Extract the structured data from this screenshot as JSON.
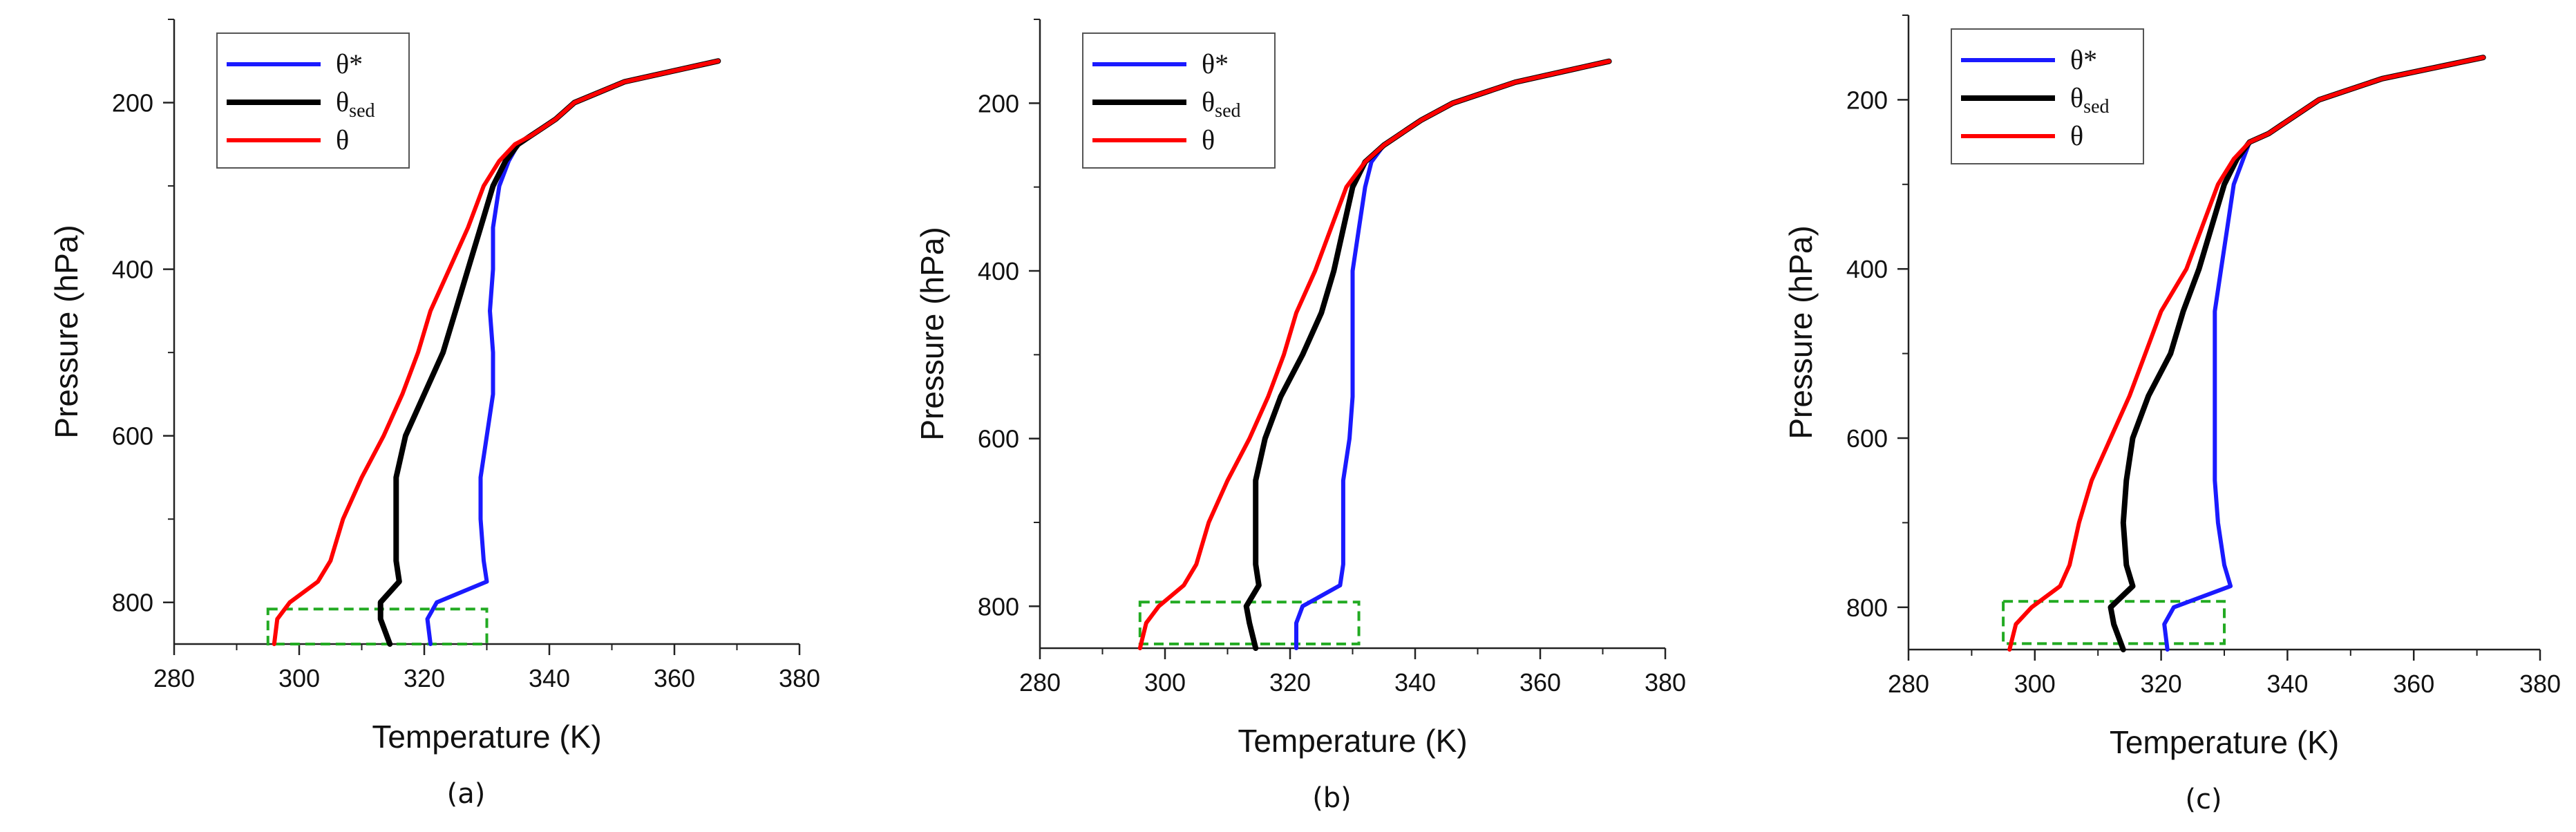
{
  "chart_data": [
    {
      "type": "line",
      "panel_label": "(a)",
      "xlabel": "Temperature (K)",
      "ylabel": "Pressure (hPa)",
      "xlim": [
        280,
        380
      ],
      "ylim": [
        850,
        100
      ],
      "y_inverted": true,
      "xticks": [
        280,
        300,
        320,
        340,
        360,
        380
      ],
      "xtick_labels": [
        "280",
        "300",
        "320",
        "340",
        "360",
        "380"
      ],
      "yticks": [
        200,
        400,
        600,
        800
      ],
      "ytick_labels": [
        "200",
        "400",
        "600",
        "800"
      ],
      "legend_position": "top-left",
      "series": [
        {
          "name": "θ*",
          "legend_main": "θ*",
          "legend_sub": "",
          "color": "#1a1aff",
          "points": [
            [
              321,
              850
            ],
            [
              320.5,
              820
            ],
            [
              322,
              800
            ],
            [
              330,
              775
            ],
            [
              329.5,
              750
            ],
            [
              329,
              700
            ],
            [
              329,
              650
            ],
            [
              330,
              600
            ],
            [
              331,
              550
            ],
            [
              331,
              500
            ],
            [
              330.5,
              450
            ],
            [
              331,
              400
            ],
            [
              331,
              350
            ],
            [
              332,
              300
            ],
            [
              333.5,
              270
            ],
            [
              335,
              250
            ],
            [
              337,
              240
            ],
            [
              339,
              230
            ],
            [
              341,
              220
            ],
            [
              344,
              200
            ],
            [
              352,
              175
            ],
            [
              367,
              150
            ]
          ]
        },
        {
          "name": "θsed",
          "legend_main": "θ",
          "legend_sub": "sed",
          "color": "#000000",
          "points": [
            [
              314.5,
              850
            ],
            [
              313,
              820
            ],
            [
              313,
              800
            ],
            [
              316,
              775
            ],
            [
              315.5,
              750
            ],
            [
              315.5,
              700
            ],
            [
              315.5,
              650
            ],
            [
              317,
              600
            ],
            [
              320,
              550
            ],
            [
              323,
              500
            ],
            [
              325,
              450
            ],
            [
              327,
              400
            ],
            [
              329,
              350
            ],
            [
              331,
              300
            ],
            [
              333,
              270
            ],
            [
              335,
              250
            ],
            [
              337,
              240
            ],
            [
              339,
              230
            ],
            [
              341,
              220
            ],
            [
              344,
              200
            ],
            [
              352,
              175
            ],
            [
              367,
              150
            ]
          ]
        },
        {
          "name": "θ",
          "legend_main": "θ",
          "legend_sub": "",
          "color": "#ff0000",
          "points": [
            [
              296,
              850
            ],
            [
              296.5,
              820
            ],
            [
              298.5,
              800
            ],
            [
              303,
              775
            ],
            [
              305,
              750
            ],
            [
              307,
              700
            ],
            [
              310,
              650
            ],
            [
              313.5,
              600
            ],
            [
              316.5,
              550
            ],
            [
              319,
              500
            ],
            [
              321,
              450
            ],
            [
              324,
              400
            ],
            [
              327,
              350
            ],
            [
              329.5,
              300
            ],
            [
              332,
              270
            ],
            [
              334.5,
              250
            ],
            [
              337,
              240
            ],
            [
              339,
              230
            ],
            [
              341,
              220
            ],
            [
              344,
              200
            ],
            [
              352,
              175
            ],
            [
              367,
              150
            ]
          ]
        }
      ],
      "highlight_box": {
        "x": [
          295,
          330
        ],
        "y": [
          808,
          850
        ],
        "color": "#22aa22"
      }
    },
    {
      "type": "line",
      "panel_label": "(b)",
      "xlabel": "Temperature (K)",
      "ylabel": "Pressure (hPa)",
      "xlim": [
        280,
        380
      ],
      "ylim": [
        850,
        100
      ],
      "y_inverted": true,
      "xticks": [
        280,
        300,
        320,
        340,
        360,
        380
      ],
      "xtick_labels": [
        "280",
        "300",
        "320",
        "340",
        "360",
        "380"
      ],
      "yticks": [
        200,
        400,
        600,
        800
      ],
      "ytick_labels": [
        "200",
        "400",
        "600",
        "800"
      ],
      "legend_position": "top-left",
      "series": [
        {
          "name": "θ*",
          "legend_main": "θ*",
          "legend_sub": "",
          "color": "#1a1aff",
          "points": [
            [
              321,
              850
            ],
            [
              321,
              820
            ],
            [
              322,
              800
            ],
            [
              328,
              775
            ],
            [
              328.5,
              750
            ],
            [
              328.5,
              700
            ],
            [
              328.5,
              650
            ],
            [
              329.5,
              600
            ],
            [
              330,
              550
            ],
            [
              330,
              500
            ],
            [
              330,
              450
            ],
            [
              330,
              400
            ],
            [
              331,
              350
            ],
            [
              332,
              300
            ],
            [
              333,
              270
            ],
            [
              335,
              250
            ],
            [
              337,
              240
            ],
            [
              339,
              230
            ],
            [
              341,
              220
            ],
            [
              346,
              200
            ],
            [
              356,
              175
            ],
            [
              371,
              150
            ]
          ]
        },
        {
          "name": "θsed",
          "legend_main": "θ",
          "legend_sub": "sed",
          "color": "#000000",
          "points": [
            [
              314.5,
              850
            ],
            [
              313.5,
              820
            ],
            [
              313,
              800
            ],
            [
              315,
              775
            ],
            [
              314.5,
              750
            ],
            [
              314.5,
              700
            ],
            [
              314.5,
              650
            ],
            [
              316,
              600
            ],
            [
              318.5,
              550
            ],
            [
              322,
              500
            ],
            [
              325,
              450
            ],
            [
              327,
              400
            ],
            [
              328.5,
              350
            ],
            [
              330,
              300
            ],
            [
              332,
              270
            ],
            [
              335,
              250
            ],
            [
              337,
              240
            ],
            [
              339,
              230
            ],
            [
              341,
              220
            ],
            [
              346,
              200
            ],
            [
              356,
              175
            ],
            [
              371,
              150
            ]
          ]
        },
        {
          "name": "θ",
          "legend_main": "θ",
          "legend_sub": "",
          "color": "#ff0000",
          "points": [
            [
              296,
              850
            ],
            [
              297,
              820
            ],
            [
              299,
              800
            ],
            [
              303,
              775
            ],
            [
              305,
              750
            ],
            [
              307,
              700
            ],
            [
              310,
              650
            ],
            [
              313.5,
              600
            ],
            [
              316.5,
              550
            ],
            [
              319,
              500
            ],
            [
              321,
              450
            ],
            [
              324,
              400
            ],
            [
              326.5,
              350
            ],
            [
              329,
              300
            ],
            [
              332,
              270
            ],
            [
              335,
              250
            ],
            [
              337,
              240
            ],
            [
              339,
              230
            ],
            [
              341,
              220
            ],
            [
              346,
              200
            ],
            [
              356,
              175
            ],
            [
              371,
              150
            ]
          ]
        }
      ],
      "highlight_box": {
        "x": [
          296,
          331
        ],
        "y": [
          795,
          845
        ],
        "color": "#22aa22"
      }
    },
    {
      "type": "line",
      "panel_label": "(c)",
      "xlabel": "Temperature (K)",
      "ylabel": "Pressure (hPa)",
      "xlim": [
        280,
        380
      ],
      "ylim": [
        850,
        100
      ],
      "y_inverted": true,
      "xticks": [
        280,
        300,
        320,
        340,
        360,
        380
      ],
      "xtick_labels": [
        "280",
        "300",
        "320",
        "340",
        "360",
        "380"
      ],
      "yticks": [
        200,
        400,
        600,
        800
      ],
      "ytick_labels": [
        "200",
        "400",
        "600",
        "800"
      ],
      "legend_position": "top-left",
      "series": [
        {
          "name": "θ*",
          "legend_main": "θ*",
          "legend_sub": "",
          "color": "#1a1aff",
          "points": [
            [
              321,
              850
            ],
            [
              320.5,
              820
            ],
            [
              322,
              800
            ],
            [
              331,
              775
            ],
            [
              330,
              750
            ],
            [
              329,
              700
            ],
            [
              328.5,
              650
            ],
            [
              328.5,
              600
            ],
            [
              328.5,
              550
            ],
            [
              328.5,
              500
            ],
            [
              328.5,
              450
            ],
            [
              329.5,
              400
            ],
            [
              330.5,
              350
            ],
            [
              331.5,
              300
            ],
            [
              333,
              270
            ],
            [
              334,
              250
            ],
            [
              337,
              240
            ],
            [
              339,
              230
            ],
            [
              341,
              220
            ],
            [
              345,
              200
            ],
            [
              355,
              175
            ],
            [
              371,
              150
            ]
          ]
        },
        {
          "name": "θsed",
          "legend_main": "θ",
          "legend_sub": "sed",
          "color": "#000000",
          "points": [
            [
              314,
              850
            ],
            [
              312.5,
              820
            ],
            [
              312,
              800
            ],
            [
              315.5,
              775
            ],
            [
              314.5,
              750
            ],
            [
              314,
              700
            ],
            [
              314.5,
              650
            ],
            [
              315.5,
              600
            ],
            [
              318,
              550
            ],
            [
              321.5,
              500
            ],
            [
              323.5,
              450
            ],
            [
              326,
              400
            ],
            [
              328,
              350
            ],
            [
              330,
              300
            ],
            [
              332,
              270
            ],
            [
              334,
              250
            ],
            [
              337,
              240
            ],
            [
              339,
              230
            ],
            [
              341,
              220
            ],
            [
              345,
              200
            ],
            [
              355,
              175
            ],
            [
              371,
              150
            ]
          ]
        },
        {
          "name": "θ",
          "legend_main": "θ",
          "legend_sub": "",
          "color": "#ff0000",
          "points": [
            [
              296,
              850
            ],
            [
              297,
              820
            ],
            [
              299.5,
              800
            ],
            [
              304,
              775
            ],
            [
              305.5,
              750
            ],
            [
              307,
              700
            ],
            [
              309,
              650
            ],
            [
              312,
              600
            ],
            [
              315,
              550
            ],
            [
              317.5,
              500
            ],
            [
              320,
              450
            ],
            [
              324,
              400
            ],
            [
              326.5,
              350
            ],
            [
              329,
              300
            ],
            [
              331.5,
              270
            ],
            [
              334,
              250
            ],
            [
              337,
              240
            ],
            [
              339,
              230
            ],
            [
              341,
              220
            ],
            [
              345,
              200
            ],
            [
              355,
              175
            ],
            [
              371,
              150
            ]
          ]
        }
      ],
      "highlight_box": {
        "x": [
          295,
          330
        ],
        "y": [
          793,
          843
        ],
        "color": "#22aa22"
      }
    }
  ]
}
